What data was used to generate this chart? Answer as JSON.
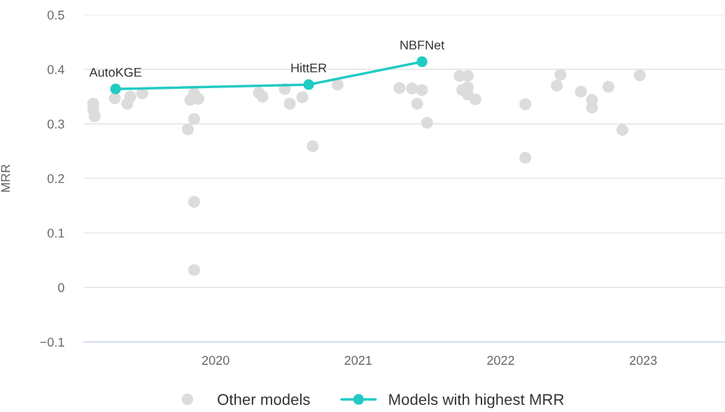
{
  "chart_data": {
    "type": "scatter",
    "ylabel": "MRR",
    "xlim": [
      2019.077,
      2023.574
    ],
    "xticks": [
      2020,
      2021,
      2022,
      2023
    ],
    "ylim": [
      -0.1,
      0.5
    ],
    "yticks": [
      -0.1,
      0,
      0.1,
      0.2,
      0.3,
      0.4,
      0.5
    ],
    "grid": "y",
    "legend": "bottom",
    "marker": "circle",
    "series": [
      {
        "name": "Other models",
        "color": "#dcdcdc",
        "x": [
          2019.141,
          2019.141,
          2019.151,
          2019.293,
          2019.38,
          2019.401,
          2019.485,
          2019.849,
          2019.822,
          2019.879,
          2019.849,
          2019.805,
          2019.849,
          2019.849,
          2020.304,
          2020.329,
          2020.485,
          2020.52,
          2020.609,
          2020.856,
          2020.681,
          2021.29,
          2021.378,
          2021.448,
          2021.414,
          2021.484,
          2021.712,
          2021.769,
          2021.731,
          2021.769,
          2021.769,
          2021.823,
          2022.173,
          2022.173,
          2022.42,
          2022.394,
          2022.563,
          2022.641,
          2022.641,
          2022.756,
          2022.854,
          2022.976
        ],
        "values": [
          0.337,
          0.327,
          0.314,
          0.347,
          0.337,
          0.35,
          0.356,
          0.356,
          0.344,
          0.346,
          0.309,
          0.29,
          0.157,
          0.032,
          0.357,
          0.35,
          0.364,
          0.337,
          0.349,
          0.372,
          0.259,
          0.366,
          0.365,
          0.362,
          0.337,
          0.302,
          0.388,
          0.388,
          0.362,
          0.367,
          0.354,
          0.345,
          0.336,
          0.238,
          0.39,
          0.37,
          0.359,
          0.344,
          0.33,
          0.368,
          0.289,
          0.389
        ]
      },
      {
        "name": "Models with highest MRR",
        "type": "line",
        "color": "#21cbc4",
        "x": [
          2019.298,
          2020.653,
          2021.448
        ],
        "values": [
          0.364,
          0.372,
          0.414
        ]
      }
    ],
    "annotations": [
      {
        "text": "AutoKGE",
        "x": 2019.298,
        "y": 0.364
      },
      {
        "text": "HittER",
        "x": 2020.653,
        "y": 0.372
      },
      {
        "text": "NBFNet",
        "x": 2021.448,
        "y": 0.414
      }
    ]
  }
}
